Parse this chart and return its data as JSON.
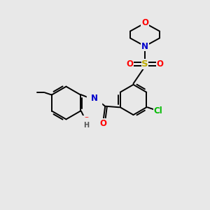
{
  "background_color": "#e8e8e8",
  "atom_colors": {
    "C": "#000000",
    "N": "#0000cc",
    "O": "#ff0000",
    "S": "#bbaa00",
    "Cl": "#00bb00",
    "H": "#555555"
  },
  "figsize": [
    3.0,
    3.0
  ],
  "dpi": 100,
  "scale": 1.0
}
